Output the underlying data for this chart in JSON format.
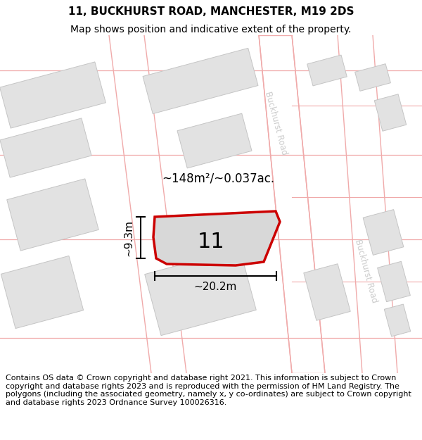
{
  "title": "11, BUCKHURST ROAD, MANCHESTER, M19 2DS",
  "subtitle": "Map shows position and indicative extent of the property.",
  "footer": "Contains OS data © Crown copyright and database right 2021. This information is subject to Crown copyright and database rights 2023 and is reproduced with the permission of HM Land Registry. The polygons (including the associated geometry, namely x, y co-ordinates) are subject to Crown copyright and database rights 2023 Ordnance Survey 100026316.",
  "map_bg": "#f5f5f5",
  "road_color": "#ffffff",
  "building_fill": "#e2e2e2",
  "building_edge": "#c5c5c5",
  "road_line_color": "#f0aaaa",
  "property_fill": "#d8d8d8",
  "property_edge": "#cc0000",
  "property_linewidth": 2.5,
  "area_text": "~148m²/~0.037ac.",
  "width_text": "~20.2m",
  "height_text": "~9.3m",
  "number_text": "11",
  "road_label": "Buckhurst Road",
  "road_label_color": "#cccccc",
  "title_fontsize": 11,
  "subtitle_fontsize": 10,
  "footer_fontsize": 8.0
}
